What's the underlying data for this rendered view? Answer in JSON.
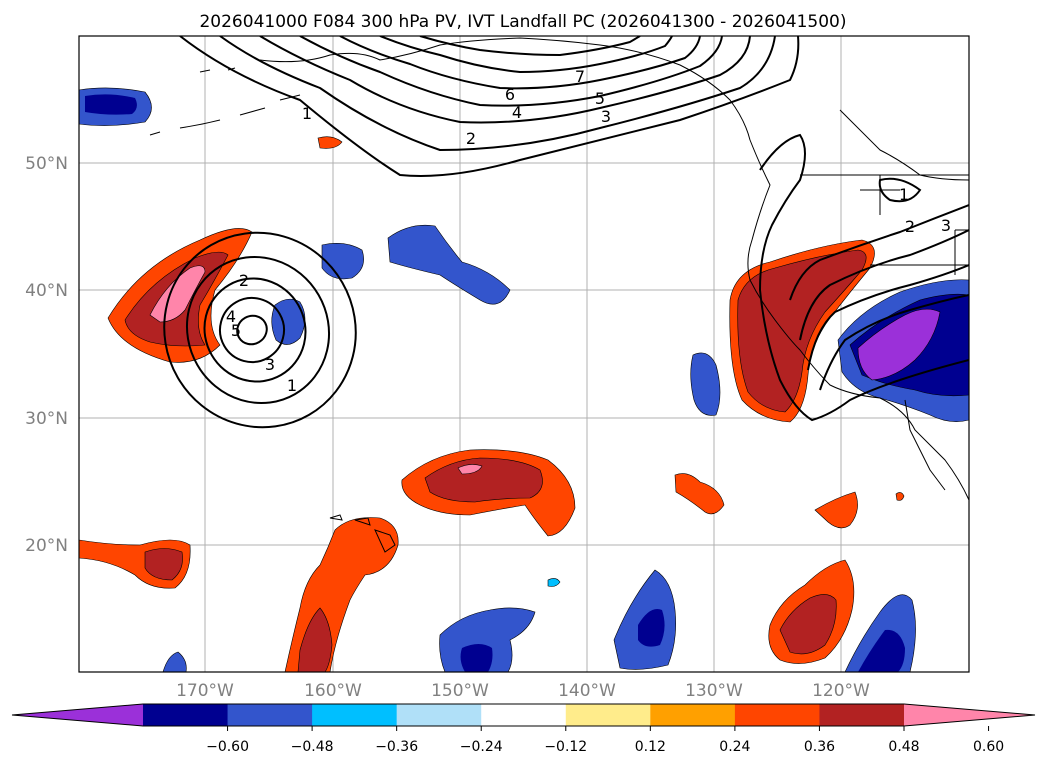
{
  "title": "2026041000 F084 300 hPa PV, IVT Landfall PC (2026041300 - 2026041500)",
  "lat_labels": [
    "50°N",
    "40°N",
    "30°N",
    "20°N"
  ],
  "lon_labels": [
    "170°W",
    "160°W",
    "150°W",
    "140°W",
    "130°W",
    "120°W"
  ],
  "colorbar": {
    "colors": [
      "#9b30d9",
      "#000090",
      "#3355cc",
      "#00bfff",
      "#b0e0f8",
      "#ffffff",
      "#ffec8b",
      "#ffa000",
      "#ff4500",
      "#b22222",
      "#ff85aa"
    ],
    "tick_labels": [
      "−0.60",
      "−0.48",
      "−0.36",
      "−0.24",
      "−0.12",
      "0.12",
      "0.24",
      "0.36",
      "0.48",
      "0.60"
    ]
  },
  "contour_labels": {
    "north_7": "7",
    "north_6": "6",
    "north_5": "5",
    "north_4": "4",
    "north_3": "3",
    "north_2": "2",
    "north_1": "1",
    "low_2": "2",
    "low_5": "5",
    "low_4": "4",
    "low_3": "3",
    "low_1": "1",
    "east_1": "1",
    "east_2": "2",
    "east_3": "3"
  }
}
